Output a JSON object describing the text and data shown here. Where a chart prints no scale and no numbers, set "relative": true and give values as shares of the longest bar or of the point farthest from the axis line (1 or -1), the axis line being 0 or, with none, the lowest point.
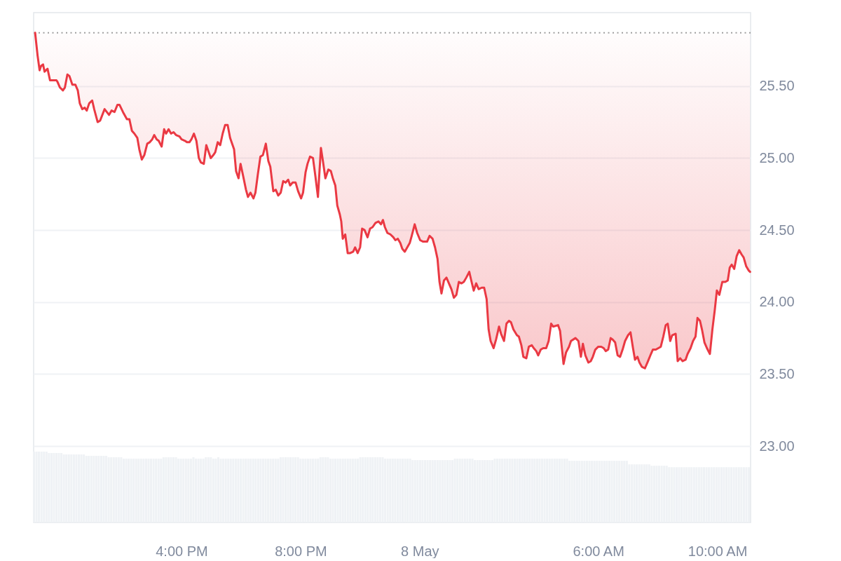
{
  "chart_data": [
    {
      "type": "line",
      "x": [
        "--05-07T11:05",
        "--05-07T11:10",
        "--05-07T11:14",
        "--05-07T11:17",
        "--05-07T11:21",
        "--05-07T11:24",
        "--05-07T11:27",
        "--05-07T11:30",
        "--05-07T11:35",
        "--05-07T11:41",
        "--05-07T11:48",
        "--05-07T11:50",
        "--05-07T11:55",
        "--05-07T12:01",
        "--05-07T12:05",
        "--05-07T12:10",
        "--05-07T12:14",
        "--05-07T12:20",
        "--05-07T12:26",
        "--05-07T12:31",
        "--05-07T12:35",
        "--05-07T12:40",
        "--05-07T12:45",
        "--05-07T12:49",
        "--05-07T12:54",
        "--05-07T13:00",
        "--05-07T13:04",
        "--05-07T13:11",
        "--05-07T13:16",
        "--05-07T13:25",
        "--05-07T13:34",
        "--05-07T13:39",
        "--05-07T13:45",
        "--05-07T13:51",
        "--05-07T13:55",
        "--05-07T14:02",
        "--05-07T14:10",
        "--05-07T14:15",
        "--05-07T14:20",
        "--05-07T14:25",
        "--05-07T14:31",
        "--05-07T14:35",
        "--05-07T14:40",
        "--05-07T14:45",
        "--05-07T14:51",
        "--05-07T14:56",
        "--05-07T15:01",
        "--05-07T15:05",
        "--05-07T15:10",
        "--05-07T15:14",
        "--05-07T15:20",
        "--05-07T15:25",
        "--05-07T15:29",
        "--05-07T15:34",
        "--05-07T15:39",
        "--05-07T15:44",
        "--05-07T15:49",
        "--05-07T15:56",
        "--05-07T16:00",
        "--05-07T16:07",
        "--05-07T16:11",
        "--05-07T16:16",
        "--05-07T16:20",
        "--05-07T16:25",
        "--05-07T16:30",
        "--05-07T16:35",
        "--05-07T16:39",
        "--05-07T16:45",
        "--05-07T16:50",
        "--05-07T16:55",
        "--05-07T16:59",
        "--05-07T17:04",
        "--05-07T17:08",
        "--05-07T17:13",
        "--05-07T17:18",
        "--05-07T17:23",
        "--05-07T17:28",
        "--05-07T17:33",
        "--05-07T17:38",
        "--05-07T17:46",
        "--05-07T17:50",
        "--05-07T17:55",
        "--05-07T17:59",
        "--05-07T18:04",
        "--05-07T18:10",
        "--05-07T18:14",
        "--05-07T18:19",
        "--05-07T18:25",
        "--05-07T18:29",
        "--05-07T18:34",
        "--05-07T18:39",
        "--05-07T18:44",
        "--05-07T18:50",
        "--05-07T18:55",
        "--05-07T18:59",
        "--05-07T19:05",
        "--05-07T19:10",
        "--05-07T19:15",
        "--05-07T19:20",
        "--05-07T19:25",
        "--05-07T19:30",
        "--05-07T19:35",
        "--05-07T19:39",
        "--05-07T19:44",
        "--05-07T19:50",
        "--05-07T19:55",
        "--05-07T20:01",
        "--05-07T20:05",
        "--05-07T20:10",
        "--05-07T20:14",
        "--05-07T20:19",
        "--05-07T20:25",
        "--05-07T20:30",
        "--05-07T20:35",
        "--05-07T20:41",
        "--05-07T20:45",
        "--05-07T20:50",
        "--05-07T20:56",
        "--05-07T21:01",
        "--05-07T21:05",
        "--05-07T21:10",
        "--05-07T21:14",
        "--05-07T21:19",
        "--05-07T21:22",
        "--05-07T21:25",
        "--05-07T21:30",
        "--05-07T21:35",
        "--05-07T21:40",
        "--05-07T21:46",
        "--05-07T21:50",
        "--05-07T21:55",
        "--05-07T22:00",
        "--05-07T22:04",
        "--05-07T22:09",
        "--05-07T22:15",
        "--05-07T22:20",
        "--05-07T22:25",
        "--05-07T22:31",
        "--05-07T22:37",
        "--05-07T22:42",
        "--05-07T22:46",
        "--05-07T22:50",
        "--05-07T22:55",
        "--05-07T23:01",
        "--05-07T23:07",
        "--05-07T23:11",
        "--05-07T23:16",
        "--05-07T23:21",
        "--05-07T23:25",
        "--05-07T23:30",
        "--05-07T23:35",
        "--05-07T23:40",
        "--05-07T23:44",
        "--05-07T23:50",
        "--05-07T23:55",
        "--05-08T00:01",
        "--05-08T00:07",
        "--05-08T00:15",
        "--05-08T00:20",
        "--05-08T00:26",
        "--05-08T00:31",
        "--05-08T00:36",
        "--05-08T00:40",
        "--05-08T00:44",
        "--05-08T00:49",
        "--05-08T00:54",
        "--05-08T00:59",
        "--05-08T01:04",
        "--05-08T01:09",
        "--05-08T01:14",
        "--05-08T01:19",
        "--05-08T01:24",
        "--05-08T01:29",
        "--05-08T01:34",
        "--05-08T01:40",
        "--05-08T01:44",
        "--05-08T01:49",
        "--05-08T01:54",
        "--05-08T01:59",
        "--05-08T02:05",
        "--05-08T02:10",
        "--05-08T02:15",
        "--05-08T02:19",
        "--05-08T02:23",
        "--05-08T02:29",
        "--05-08T02:34",
        "--05-08T02:40",
        "--05-08T02:44",
        "--05-08T02:50",
        "--05-08T02:55",
        "--05-08T03:00",
        "--05-08T03:04",
        "--05-08T03:09",
        "--05-08T03:16",
        "--05-08T03:20",
        "--05-08T03:25",
        "--05-08T03:29",
        "--05-08T03:35",
        "--05-08T03:40",
        "--05-08T03:46",
        "--05-08T03:50",
        "--05-08T03:55",
        "--05-08T03:59",
        "--05-08T04:04",
        "--05-08T04:09",
        "--05-08T04:15",
        "--05-08T04:20",
        "--05-08T04:25",
        "--05-08T04:29",
        "--05-08T04:39",
        "--05-08T04:43",
        "--05-08T04:47",
        "--05-08T04:50",
        "--05-08T04:55",
        "--05-08T05:01",
        "--05-08T05:05",
        "--05-08T05:14",
        "--05-08T05:20",
        "--05-08T05:25",
        "--05-08T05:29",
        "--05-08T05:34",
        "--05-08T05:40",
        "--05-08T05:45",
        "--05-08T05:49",
        "--05-08T05:54",
        "--05-08T06:00",
        "--05-08T06:06",
        "--05-08T06:11",
        "--05-08T06:15",
        "--05-08T06:20",
        "--05-08T06:25",
        "--05-08T06:29",
        "--05-08T06:34",
        "--05-08T06:39",
        "--05-08T06:44",
        "--05-08T06:49",
        "--05-08T06:54",
        "--05-08T07:00",
        "--05-08T07:05",
        "--05-08T07:10",
        "--05-08T07:14",
        "--05-08T07:19",
        "--05-08T07:23",
        "--05-08T07:28",
        "--05-08T07:34",
        "--05-08T07:39",
        "--05-08T07:45",
        "--05-08T07:50",
        "--05-08T07:56",
        "--05-08T08:01",
        "--05-08T08:06",
        "--05-08T08:11",
        "--05-08T08:16",
        "--05-08T08:20",
        "--05-08T08:25",
        "--05-08T08:29",
        "--05-08T08:36",
        "--05-08T08:40",
        "--05-08T08:45",
        "--05-08T08:50",
        "--05-08T08:56",
        "--05-08T09:00",
        "--05-08T09:06",
        "--05-08T09:11",
        "--05-08T09:16",
        "--05-08T09:20",
        "--05-08T09:25",
        "--05-08T09:29",
        "--05-08T09:34",
        "--05-08T09:39",
        "--05-08T09:45",
        "--05-08T09:50",
        "--05-08T09:55",
        "--05-08T09:59",
        "--05-08T10:04",
        "--05-08T10:10",
        "--05-08T10:16",
        "--05-08T10:21",
        "--05-08T10:25",
        "--05-08T10:29",
        "--05-08T10:34",
        "--05-08T10:39",
        "--05-08T10:44",
        "--05-08T10:49",
        "--05-08T10:53",
        "--05-08T10:58",
        "--05-08T11:03",
        "--05-08T11:06"
      ],
      "series": [
        {
          "color": "#ea3943",
          "values": [
            25.87,
            25.71,
            25.61,
            25.64,
            25.65,
            25.6,
            25.61,
            25.62,
            25.54,
            25.54,
            25.54,
            25.53,
            25.49,
            25.47,
            25.49,
            25.58,
            25.57,
            25.51,
            25.51,
            25.47,
            25.38,
            25.34,
            25.35,
            25.33,
            25.38,
            25.4,
            25.34,
            25.25,
            25.26,
            25.34,
            25.3,
            25.33,
            25.32,
            25.37,
            25.37,
            25.32,
            25.27,
            25.27,
            25.19,
            25.17,
            25.14,
            25.06,
            24.99,
            25.02,
            25.1,
            25.11,
            25.13,
            25.16,
            25.13,
            25.12,
            25.08,
            25.2,
            25.17,
            25.2,
            25.17,
            25.18,
            25.16,
            25.15,
            25.13,
            25.12,
            25.11,
            25.11,
            25.13,
            25.17,
            25.12,
            25.0,
            24.97,
            24.96,
            25.09,
            25.04,
            25.0,
            25.02,
            25.04,
            25.11,
            25.09,
            25.17,
            25.23,
            25.23,
            25.14,
            25.06,
            24.91,
            24.86,
            24.96,
            24.88,
            24.78,
            24.73,
            24.76,
            24.72,
            24.76,
            24.89,
            25.01,
            25.02,
            25.1,
            24.98,
            24.94,
            24.77,
            24.78,
            24.74,
            24.76,
            24.84,
            24.83,
            24.85,
            24.81,
            24.83,
            24.83,
            24.77,
            24.72,
            24.76,
            24.9,
            24.96,
            25.01,
            25.0,
            24.87,
            24.73,
            25.07,
            24.98,
            24.86,
            24.92,
            24.91,
            24.86,
            24.81,
            24.67,
            24.61,
            24.56,
            24.44,
            24.47,
            24.34,
            24.34,
            24.35,
            24.38,
            24.34,
            24.38,
            24.51,
            24.5,
            24.45,
            24.51,
            24.52,
            24.55,
            24.56,
            24.54,
            24.57,
            24.52,
            24.48,
            24.47,
            24.45,
            24.43,
            24.44,
            24.41,
            24.37,
            24.35,
            24.38,
            24.41,
            24.46,
            24.54,
            24.48,
            24.43,
            24.42,
            24.42,
            24.46,
            24.44,
            24.38,
            24.3,
            24.14,
            24.06,
            24.15,
            24.17,
            24.13,
            24.09,
            24.03,
            24.05,
            24.14,
            24.13,
            24.14,
            24.17,
            24.21,
            24.15,
            24.08,
            24.13,
            24.09,
            24.1,
            24.1,
            24.02,
            23.81,
            23.73,
            23.68,
            23.74,
            23.83,
            23.78,
            23.73,
            23.85,
            23.87,
            23.86,
            23.81,
            23.77,
            23.76,
            23.7,
            23.62,
            23.61,
            23.69,
            23.7,
            23.68,
            23.66,
            23.63,
            23.67,
            23.68,
            23.68,
            23.73,
            23.85,
            23.83,
            23.84,
            23.8,
            23.67,
            23.57,
            23.65,
            23.69,
            23.73,
            23.75,
            23.73,
            23.62,
            23.71,
            23.63,
            23.58,
            23.59,
            23.62,
            23.67,
            23.69,
            23.69,
            23.68,
            23.66,
            23.67,
            23.75,
            23.74,
            23.72,
            23.63,
            23.62,
            23.67,
            23.73,
            23.77,
            23.79,
            23.68,
            23.6,
            23.62,
            23.58,
            23.55,
            23.54,
            23.58,
            23.63,
            23.67,
            23.67,
            23.68,
            23.69,
            23.76,
            23.84,
            23.85,
            23.73,
            23.77,
            23.78,
            23.59,
            23.61,
            23.59,
            23.6,
            23.64,
            23.68,
            23.73,
            23.76,
            23.89,
            23.87,
            23.81,
            23.72,
            23.68,
            23.64,
            23.81,
            23.95,
            24.08,
            24.05,
            24.14,
            24.14,
            24.15,
            24.24,
            24.26,
            24.23,
            24.32,
            24.36,
            24.33,
            24.31,
            24.25,
            24.22,
            24.21
          ],
          "lower": [
            25.87,
            25.71,
            25.61,
            25.64,
            25.65,
            25.6,
            25.61,
            25.62,
            25.54,
            25.54,
            25.54,
            25.53,
            25.49,
            25.47,
            25.49,
            25.58,
            25.57,
            25.51,
            25.51,
            25.47,
            25.38,
            25.34,
            25.35,
            25.33,
            25.38,
            25.4,
            25.34,
            25.25,
            25.26,
            25.34,
            25.3,
            25.33,
            25.32,
            25.37,
            25.37,
            25.32,
            25.27,
            25.27,
            25.19,
            25.17,
            25.14,
            25.06,
            24.99,
            25.02,
            25.1,
            25.11,
            25.13,
            25.16,
            25.13,
            25.12,
            25.08,
            25.2,
            25.17,
            25.2,
            25.17,
            25.18,
            25.16,
            25.15,
            25.13,
            25.12,
            25.11,
            25.11,
            25.13,
            25.17,
            25.12,
            25.0,
            24.97,
            24.96,
            25.09,
            25.04,
            25.0,
            25.02,
            25.04,
            25.11,
            25.09,
            25.17,
            25.23,
            25.23,
            25.14,
            25.06,
            24.91,
            24.86,
            24.96,
            24.88,
            24.78,
            24.73,
            24.76,
            24.72,
            24.76,
            24.89,
            25.01,
            25.02,
            25.1,
            24.98,
            24.94,
            24.77,
            24.78,
            24.74,
            24.76,
            24.84,
            24.83,
            24.85,
            24.81,
            24.83,
            24.83,
            24.77,
            24.72,
            24.76,
            24.9,
            24.96,
            25.01,
            25.0,
            24.87,
            24.73,
            25.07,
            24.98,
            24.86,
            24.92,
            24.91,
            24.86,
            24.81,
            24.67,
            24.61,
            24.56,
            24.44,
            24.47,
            24.34,
            24.34,
            24.35,
            24.38,
            24.34,
            24.38,
            24.51,
            24.5,
            24.45,
            24.51,
            24.52,
            24.55,
            24.56,
            24.54,
            24.57,
            24.52,
            24.48,
            24.47,
            24.45,
            24.43,
            24.44,
            24.41,
            24.37,
            24.35,
            24.38,
            24.41,
            24.46,
            24.54,
            24.48,
            24.43,
            24.42,
            24.42,
            24.46,
            24.44,
            24.38,
            24.3,
            24.14,
            24.06,
            24.15,
            24.17,
            24.13,
            24.09,
            24.03,
            24.05,
            24.14,
            24.13,
            24.14,
            24.17,
            24.21,
            24.15,
            24.08,
            24.13,
            24.09,
            24.1,
            24.1,
            24.02,
            23.81,
            23.73,
            23.68,
            23.74,
            23.83,
            23.78,
            23.73,
            23.85,
            23.87,
            23.86,
            23.81,
            23.77,
            23.76,
            23.7,
            23.62,
            23.61,
            23.69,
            23.7,
            23.68,
            23.66,
            23.63,
            23.67,
            23.68,
            23.68,
            23.73,
            23.85,
            23.83,
            23.84,
            23.8,
            23.67,
            23.57,
            23.65,
            23.69,
            23.73,
            23.75,
            23.73,
            23.62,
            23.71,
            23.63,
            23.58,
            23.59,
            23.62,
            23.67,
            23.69,
            23.69,
            23.68,
            23.66,
            23.67,
            23.75,
            23.74,
            23.72,
            23.63,
            23.62,
            23.67,
            23.73,
            23.77,
            23.79,
            23.68,
            23.6,
            23.62,
            23.58,
            23.55,
            23.54,
            23.58,
            23.63,
            23.67,
            23.67,
            23.68,
            23.69,
            23.76,
            23.84,
            23.85,
            23.73,
            23.77,
            23.78,
            23.59,
            23.61,
            23.59,
            23.6,
            23.64,
            23.68,
            23.73,
            23.76,
            23.89,
            23.87,
            23.81,
            23.72,
            23.68,
            23.64,
            23.81,
            23.95,
            24.08,
            24.05,
            24.14,
            24.14,
            24.15,
            24.24,
            24.26,
            24.23,
            24.32,
            24.36,
            24.33,
            24.31,
            24.25,
            24.22,
            24.21
          ],
          "upper": [
            25.87,
            25.87,
            25.87,
            25.87,
            25.87,
            25.87,
            25.87,
            25.87,
            25.87,
            25.87,
            25.87,
            25.87,
            25.87,
            25.87,
            25.87,
            25.87,
            25.87,
            25.87,
            25.87,
            25.87,
            25.87,
            25.87,
            25.87,
            25.87,
            25.87,
            25.87,
            25.87,
            25.87,
            25.87,
            25.87,
            25.87,
            25.87,
            25.87,
            25.87,
            25.87,
            25.87,
            25.87,
            25.87,
            25.87,
            25.87,
            25.87,
            25.87,
            25.87,
            25.87,
            25.87,
            25.87,
            25.87,
            25.87,
            25.87,
            25.87,
            25.87,
            25.87,
            25.87,
            25.87,
            25.87,
            25.87,
            25.87,
            25.87,
            25.87,
            25.87,
            25.87,
            25.87,
            25.87,
            25.87,
            25.87,
            25.87,
            25.87,
            25.87,
            25.87,
            25.87,
            25.87,
            25.87,
            25.87,
            25.87,
            25.87,
            25.87,
            25.87,
            25.87,
            25.87,
            25.87,
            25.87,
            25.87,
            25.87,
            25.87,
            25.87,
            25.87,
            25.87,
            25.87,
            25.87,
            25.87,
            25.87,
            25.87,
            25.87,
            25.87,
            25.87,
            25.87,
            25.87,
            25.87,
            25.87,
            25.87,
            25.87,
            25.87,
            25.87,
            25.87,
            25.87,
            25.87,
            25.87,
            25.87,
            25.87,
            25.87,
            25.87,
            25.87,
            25.87,
            25.87,
            25.87,
            25.87,
            25.87,
            25.87,
            25.87,
            25.87,
            25.87,
            25.87,
            25.87,
            25.87,
            25.87,
            25.87,
            25.87,
            25.87,
            25.87,
            25.87,
            25.87,
            25.87,
            25.87,
            25.87,
            25.87,
            25.87,
            25.87,
            25.87,
            25.87,
            25.87,
            25.87,
            25.87,
            25.87,
            25.87,
            25.87,
            25.87,
            25.87,
            25.87,
            25.87,
            25.87,
            25.87,
            25.87,
            25.87,
            25.87,
            25.87,
            25.87,
            25.87,
            25.87,
            25.87,
            25.87,
            25.87,
            25.87,
            25.87,
            25.87,
            25.87,
            25.87,
            25.87,
            25.87,
            25.87,
            25.87,
            25.87,
            25.87,
            25.87,
            25.87,
            25.87,
            25.87,
            25.87,
            25.87,
            25.87,
            25.87,
            25.87,
            25.87,
            25.87,
            25.87,
            25.87,
            25.87,
            25.87,
            25.87,
            25.87,
            25.87,
            25.87,
            25.87,
            25.87,
            25.87,
            25.87,
            25.87,
            25.87,
            25.87,
            25.87,
            25.87,
            25.87,
            25.87,
            25.87,
            25.87,
            25.87,
            25.87,
            25.87,
            25.87,
            25.87,
            25.87,
            25.87,
            25.87,
            25.87,
            25.87,
            25.87,
            25.87,
            25.87,
            25.87,
            25.87,
            25.87,
            25.87,
            25.87,
            25.87,
            25.87,
            25.87,
            25.87,
            25.87,
            25.87,
            25.87,
            25.87,
            25.87,
            25.87,
            25.87,
            25.87,
            25.87,
            25.87,
            25.87,
            25.87,
            25.87,
            25.87,
            25.87,
            25.87,
            25.87,
            25.87,
            25.87,
            25.87,
            25.87,
            25.87,
            25.87,
            25.87,
            25.87,
            25.87,
            25.87,
            25.87,
            25.87,
            25.87,
            25.87,
            25.87,
            25.87,
            25.87,
            25.87,
            25.87,
            25.87,
            25.87,
            25.87,
            25.87,
            25.87,
            25.87,
            25.87,
            25.87,
            25.87,
            25.87,
            25.87,
            25.87,
            25.87,
            25.87,
            25.87,
            25.87,
            25.87,
            25.87,
            25.87,
            25.87,
            25.87,
            25.87,
            25.87,
            25.87,
            25.87,
            25.87
          ]
        }
      ],
      "xlim": [
        "--05-07T11:02",
        "--05-08T11:07"
      ],
      "xticks": [
        {
          "value": "--05-07T16:00",
          "label": "4:00 PM"
        },
        {
          "value": "--05-07T20:00",
          "label": "8:00 PM"
        },
        {
          "value": "--05-08",
          "label": "8 May"
        },
        {
          "value": "--05-08T06:00",
          "label": "6:00 AM"
        },
        {
          "value": "--05-08T10:00",
          "label": "10:00 AM"
        }
      ],
      "ylim": [
        22.47,
        26.01
      ],
      "yticks": [
        {
          "value": 23,
          "label": "23.00"
        },
        {
          "value": 23.5,
          "label": "23.50"
        },
        {
          "value": 24,
          "label": "24.00"
        },
        {
          "value": 24.5,
          "label": "24.50"
        },
        {
          "value": 25,
          "label": "25.00"
        },
        {
          "value": 25.5,
          "label": "25.50"
        }
      ],
      "grid": "y",
      "ref_lines": [
        {
          "axis": "y",
          "value": 25.87,
          "line_style": "dotted",
          "color": "#9e9e9e"
        }
      ]
    },
    {
      "type": "bar",
      "relative": true,
      "color": "#eff2f5",
      "categories": [
        null,
        null,
        null,
        null,
        null,
        null,
        null,
        null,
        null,
        null,
        null,
        null,
        null,
        null,
        null,
        null,
        null,
        null,
        null,
        null,
        null,
        null,
        null,
        null,
        null,
        null,
        null,
        null,
        null,
        null,
        null,
        null,
        null,
        null,
        null,
        null,
        null,
        null,
        null,
        null,
        null,
        null,
        null,
        null,
        null,
        null,
        null,
        null,
        null,
        null,
        null,
        null,
        null,
        null,
        null,
        null,
        null,
        null,
        null,
        null,
        null,
        null,
        null,
        null,
        null,
        null,
        null,
        null,
        null,
        null,
        null,
        null,
        null,
        null,
        null,
        null,
        null,
        null,
        null,
        null,
        null,
        null,
        null,
        null,
        null,
        null,
        null,
        null,
        null,
        null,
        null,
        null,
        null,
        null,
        null,
        null,
        null,
        null,
        null,
        null,
        null,
        null,
        null,
        null,
        null,
        null,
        null,
        null,
        null,
        null,
        null,
        null,
        null,
        null,
        null,
        null,
        null,
        null,
        null,
        null,
        null,
        null,
        null,
        null,
        null,
        null,
        null,
        null,
        null,
        null,
        null,
        null,
        null,
        null,
        null,
        null,
        null,
        null,
        null,
        null,
        null,
        null,
        null,
        null,
        null,
        null,
        null,
        null,
        null,
        null,
        null,
        null,
        null,
        null,
        null,
        null,
        null,
        null,
        null,
        null,
        null,
        null,
        null,
        null,
        null,
        null,
        null,
        null,
        null,
        null,
        null,
        null,
        null,
        null,
        null,
        null,
        null,
        null,
        null,
        null,
        null,
        null,
        null,
        null,
        null,
        null,
        null,
        null,
        null,
        null,
        null,
        null,
        null,
        null,
        null,
        null,
        null,
        null,
        null,
        null,
        null,
        null,
        null,
        null,
        null,
        null,
        null,
        null,
        null,
        null,
        null,
        null,
        null,
        null,
        null,
        null,
        null,
        null,
        null,
        null,
        null,
        null,
        null,
        null,
        null,
        null,
        null,
        null,
        null,
        null,
        null,
        null,
        null,
        null,
        null,
        null,
        null,
        null,
        null,
        null,
        null,
        null,
        null,
        null,
        null,
        null,
        null,
        null,
        null,
        null,
        null,
        null,
        null,
        null,
        null,
        null,
        null,
        null,
        null,
        null,
        null,
        null,
        null,
        null,
        null,
        null,
        null,
        null,
        null,
        null,
        null,
        null,
        null,
        null,
        null,
        null,
        null,
        null,
        null,
        null,
        null,
        null,
        null,
        null,
        null,
        null,
        null,
        null
      ],
      "values": [
        1,
        1,
        1,
        1,
        1,
        1,
        0.98,
        0.98,
        0.98,
        0.98,
        0.98,
        0.98,
        0.96,
        0.96,
        0.96,
        0.96,
        0.96,
        0.96,
        0.96,
        0.96,
        0.96,
        0.94,
        0.94,
        0.94,
        0.94,
        0.94,
        0.94,
        0.94,
        0.94,
        0.94,
        0.92,
        0.92,
        0.92,
        0.92,
        0.92,
        0.92,
        0.9,
        0.9,
        0.9,
        0.9,
        0.9,
        0.9,
        0.9,
        0.9,
        0.9,
        0.9,
        0.9,
        0.9,
        0.9,
        0.9,
        0.9,
        0.9,
        0.92,
        0.92,
        0.92,
        0.92,
        0.92,
        0.92,
        0.9,
        0.9,
        0.9,
        0.9,
        0.9,
        0.9,
        0.92,
        0.9,
        0.9,
        0.9,
        0.9,
        0.92,
        0.92,
        0.92,
        0.9,
        0.9,
        0.92,
        0.9,
        0.9,
        0.9,
        0.9,
        0.9,
        0.9,
        0.9,
        0.9,
        0.9,
        0.9,
        0.9,
        0.9,
        0.9,
        0.9,
        0.9,
        0.9,
        0.9,
        0.9,
        0.9,
        0.9,
        0.9,
        0.9,
        0.9,
        0.9,
        0.92,
        0.92,
        0.92,
        0.92,
        0.92,
        0.92,
        0.92,
        0.92,
        0.9,
        0.9,
        0.9,
        0.9,
        0.9,
        0.9,
        0.9,
        0.9,
        0.92,
        0.92,
        0.92,
        0.92,
        0.9,
        0.9,
        0.9,
        0.9,
        0.9,
        0.9,
        0.9,
        0.9,
        0.9,
        0.9,
        0.9,
        0.9,
        0.92,
        0.92,
        0.92,
        0.92,
        0.92,
        0.92,
        0.92,
        0.92,
        0.92,
        0.92,
        0.9,
        0.9,
        0.9,
        0.9,
        0.9,
        0.9,
        0.9,
        0.9,
        0.9,
        0.9,
        0.9,
        0.88,
        0.88,
        0.88,
        0.88,
        0.88,
        0.88,
        0.88,
        0.88,
        0.88,
        0.88,
        0.88,
        0.88,
        0.88,
        0.88,
        0.88,
        0.88,
        0.88,
        0.9,
        0.9,
        0.9,
        0.9,
        0.9,
        0.9,
        0.9,
        0.9,
        0.88,
        0.88,
        0.88,
        0.88,
        0.88,
        0.88,
        0.88,
        0.88,
        0.9,
        0.9,
        0.9,
        0.9,
        0.9,
        0.9,
        0.9,
        0.9,
        0.9,
        0.9,
        0.9,
        0.9,
        0.9,
        0.9,
        0.9,
        0.9,
        0.9,
        0.9,
        0.9,
        0.9,
        0.9,
        0.9,
        0.9,
        0.9,
        0.9,
        0.9,
        0.9,
        0.9,
        0.9,
        0.9,
        0.87,
        0.87,
        0.87,
        0.87,
        0.87,
        0.87,
        0.87,
        0.87,
        0.87,
        0.87,
        0.87,
        0.87,
        0.87,
        0.87,
        0.87,
        0.87,
        0.87,
        0.87,
        0.87,
        0.87,
        0.87,
        0.87,
        0.87,
        0.87,
        0.82,
        0.82,
        0.82,
        0.82,
        0.82,
        0.82,
        0.82,
        0.82,
        0.82,
        0.8,
        0.8,
        0.8,
        0.8,
        0.8,
        0.8,
        0.8,
        0.78,
        0.78,
        0.78,
        0.78,
        0.78,
        0.78,
        0.78,
        0.78,
        0.78,
        0.78,
        0.78,
        0.78,
        0.78,
        0.78,
        0.78,
        0.78,
        0.78,
        0.78,
        0.78,
        0.78,
        0.78,
        0.78,
        0.78,
        0.78,
        0.78,
        0.78,
        0.78,
        0.78,
        0.78,
        0.78,
        0.78,
        0.78,
        0.78
      ]
    }
  ]
}
